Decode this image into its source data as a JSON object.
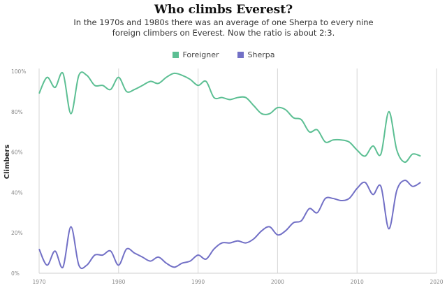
{
  "chart_data": {
    "type": "line",
    "title": "Who climbs Everest?",
    "subtitle": "In the 1970s and 1980s there was an average of one Sherpa to every nine foreign climbers on Everest. Now the ratio is about 2:3.",
    "xlabel": "",
    "ylabel": "Climbers",
    "xlim": [
      1970,
      2020
    ],
    "ylim": [
      0,
      100
    ],
    "x_ticks": [
      "1970",
      "1980",
      "1990",
      "2000",
      "2010",
      "2020"
    ],
    "y_ticks": [
      "0%",
      "20%",
      "40%",
      "60%",
      "80%",
      "100%"
    ],
    "grid": "vertical",
    "legend_position": "top-center",
    "x": [
      1970,
      1971,
      1972,
      1973,
      1974,
      1975,
      1976,
      1977,
      1978,
      1979,
      1980,
      1981,
      1982,
      1983,
      1984,
      1985,
      1986,
      1987,
      1988,
      1989,
      1990,
      1991,
      1992,
      1993,
      1994,
      1995,
      1996,
      1997,
      1998,
      1999,
      2000,
      2001,
      2002,
      2003,
      2004,
      2005,
      2006,
      2007,
      2008,
      2009,
      2010,
      2011,
      2012,
      2013,
      2014,
      2015,
      2016,
      2017,
      2018
    ],
    "series": [
      {
        "name": "Foreigner",
        "color": "#5cbf93",
        "values": [
          89,
          97,
          92,
          99,
          79,
          98,
          98,
          93,
          93,
          91,
          97,
          90,
          91,
          93,
          95,
          94,
          97,
          99,
          98,
          96,
          93,
          95,
          87,
          87,
          86,
          87,
          87,
          83,
          79,
          79,
          82,
          81,
          77,
          76,
          70,
          71,
          65,
          66,
          66,
          65,
          61,
          58,
          63,
          59,
          80,
          61,
          55,
          59,
          58
        ]
      },
      {
        "name": "Sherpa",
        "color": "#7270c6",
        "values": [
          12,
          4,
          11,
          3,
          23,
          4,
          4,
          9,
          9,
          11,
          4,
          12,
          10,
          8,
          6,
          8,
          5,
          3,
          5,
          6,
          9,
          7,
          12,
          15,
          15,
          16,
          15,
          17,
          21,
          23,
          19,
          21,
          25,
          26,
          32,
          30,
          37,
          37,
          36,
          37,
          42,
          45,
          39,
          43,
          22,
          41,
          46,
          43,
          45
        ]
      }
    ]
  }
}
